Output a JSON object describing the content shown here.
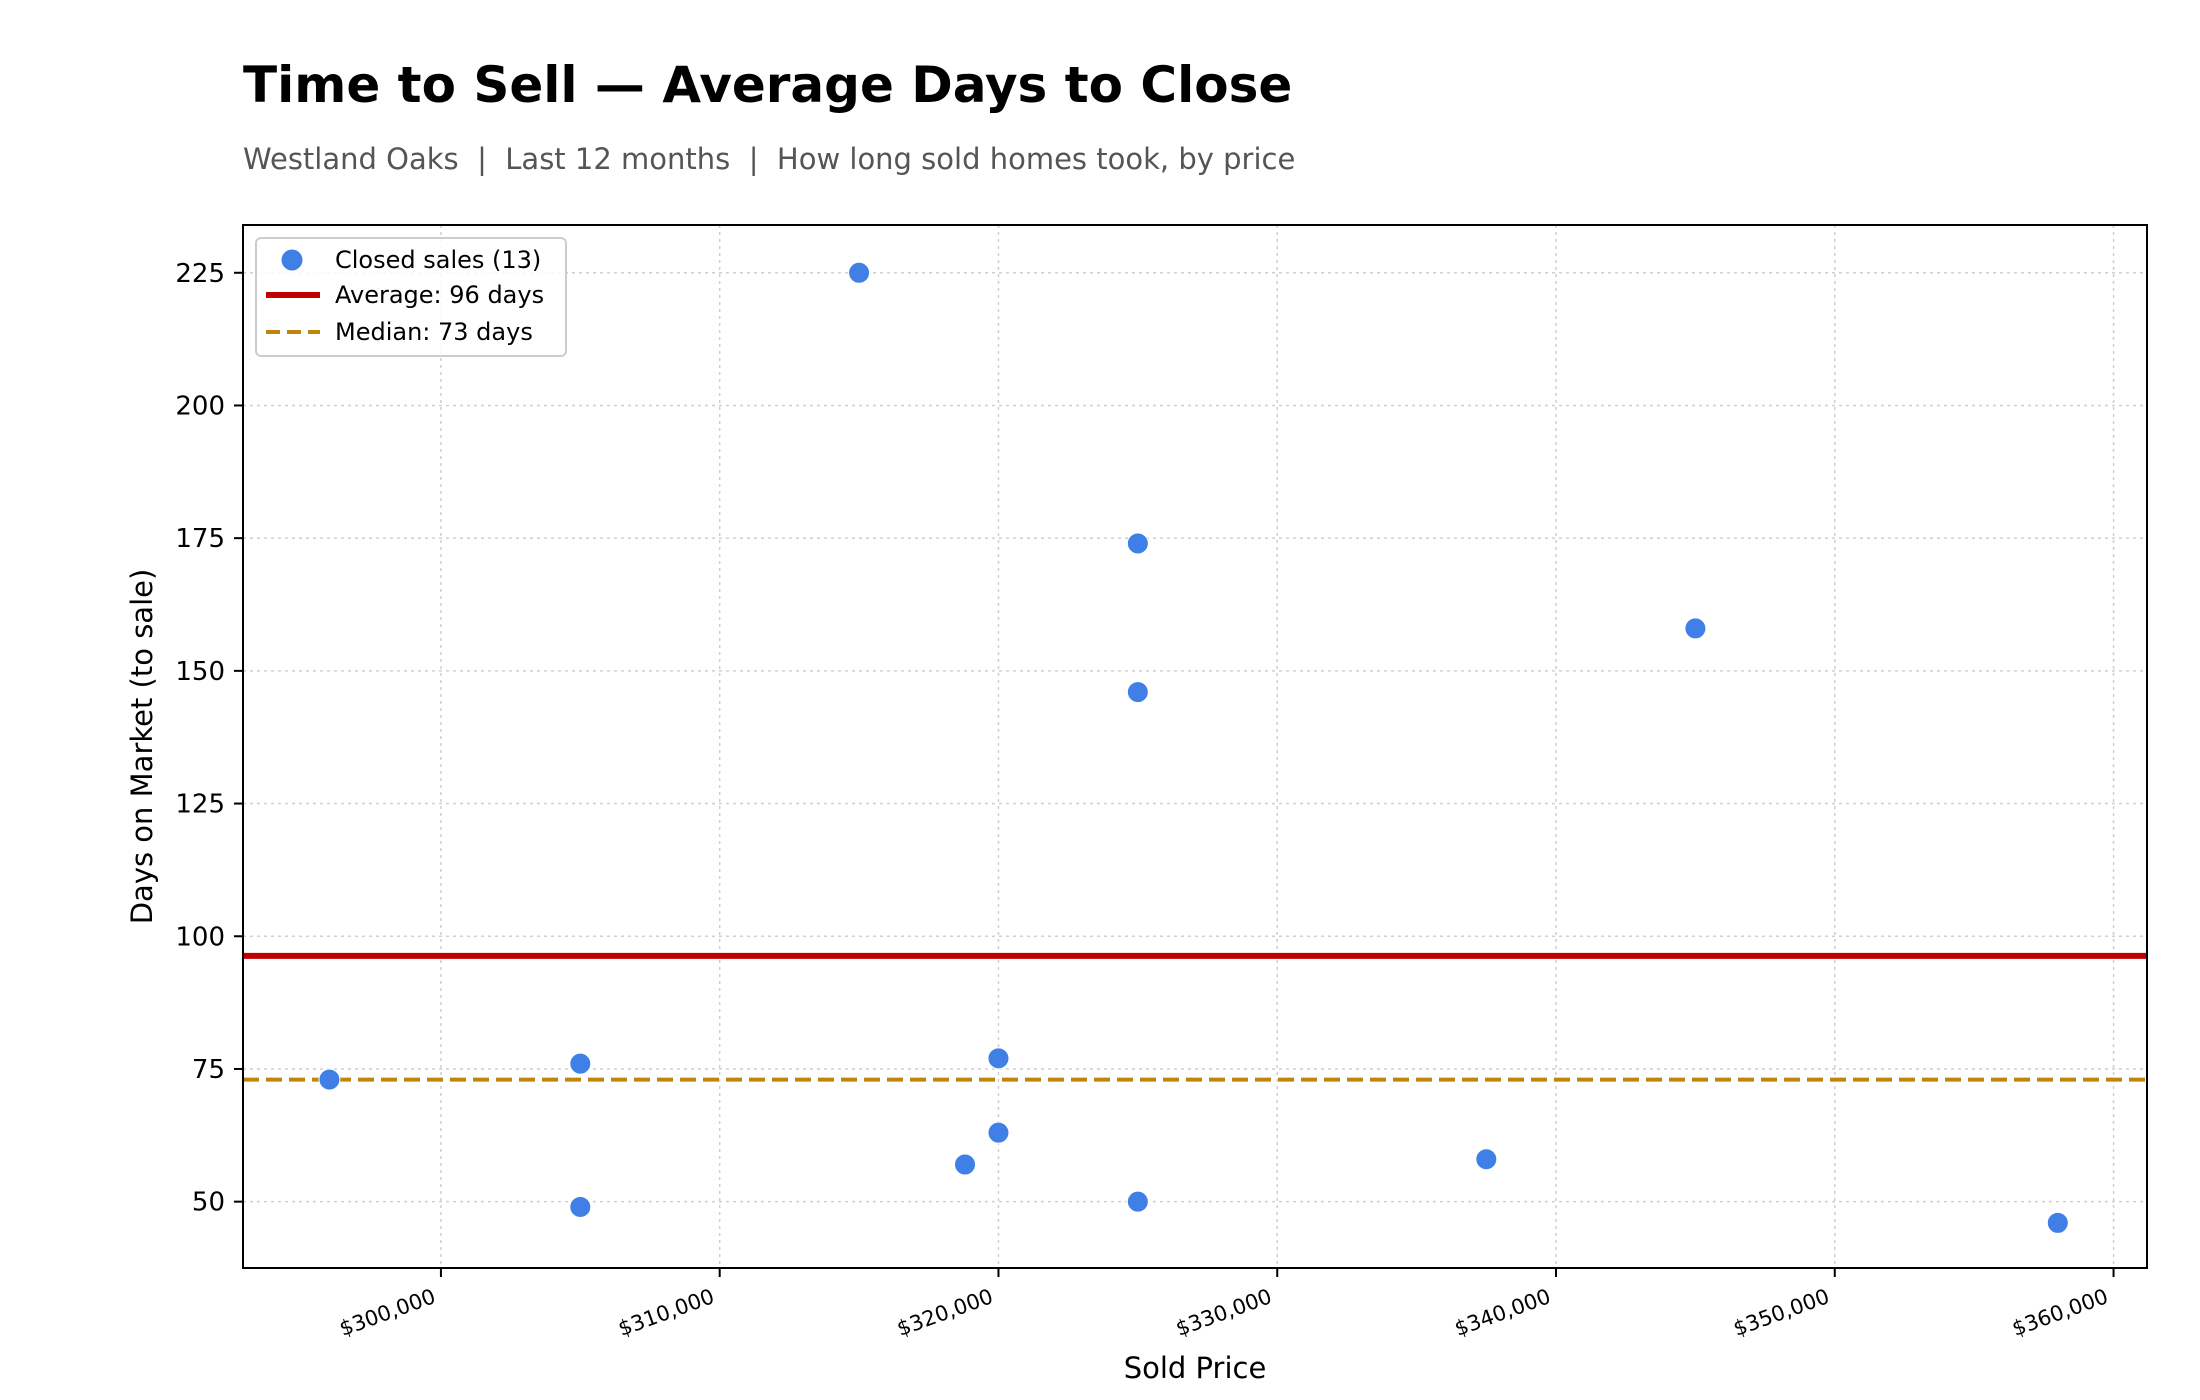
{
  "header": {
    "title": "Time to Sell — Average Days to Close",
    "subtitle": "Westland Oaks  |  Last 12 months  |  How long sold homes took, by price"
  },
  "chart_data": {
    "type": "scatter",
    "title": "Time to Sell — Average Days to Close",
    "subtitle": "Westland Oaks  |  Last 12 months  |  How long sold homes took, by price",
    "xlabel": "Sold Price",
    "ylabel": "Days on Market (to sale)",
    "xlim": [
      292900,
      361200
    ],
    "ylim": [
      37.5,
      234
    ],
    "x_ticks": [
      300000,
      310000,
      320000,
      330000,
      340000,
      350000,
      360000
    ],
    "x_tick_labels": [
      "$300,000",
      "$310,000",
      "$320,000",
      "$330,000",
      "$340,000",
      "$350,000",
      "$360,000"
    ],
    "y_ticks": [
      50,
      75,
      100,
      125,
      150,
      175,
      200,
      225
    ],
    "y_tick_labels": [
      "50",
      "75",
      "100",
      "125",
      "150",
      "175",
      "200",
      "225"
    ],
    "grid": true,
    "legend_position": "top-left",
    "series": [
      {
        "name": "Closed sales (13)",
        "color": "#3f7fe6",
        "points": [
          {
            "x": 296000,
            "y": 73
          },
          {
            "x": 305000,
            "y": 76
          },
          {
            "x": 305000,
            "y": 49
          },
          {
            "x": 315000,
            "y": 225
          },
          {
            "x": 318800,
            "y": 57
          },
          {
            "x": 320000,
            "y": 77
          },
          {
            "x": 320000,
            "y": 63
          },
          {
            "x": 325000,
            "y": 174
          },
          {
            "x": 325000,
            "y": 146
          },
          {
            "x": 325000,
            "y": 50
          },
          {
            "x": 337500,
            "y": 58
          },
          {
            "x": 345000,
            "y": 158
          },
          {
            "x": 358000,
            "y": 46
          }
        ]
      }
    ],
    "reference_lines": [
      {
        "name": "Average: 96 days",
        "y": 96.3,
        "color": "#c00000",
        "style": "solid"
      },
      {
        "name": "Median: 73 days",
        "y": 73,
        "color": "#c0860b",
        "style": "dashed"
      }
    ]
  }
}
